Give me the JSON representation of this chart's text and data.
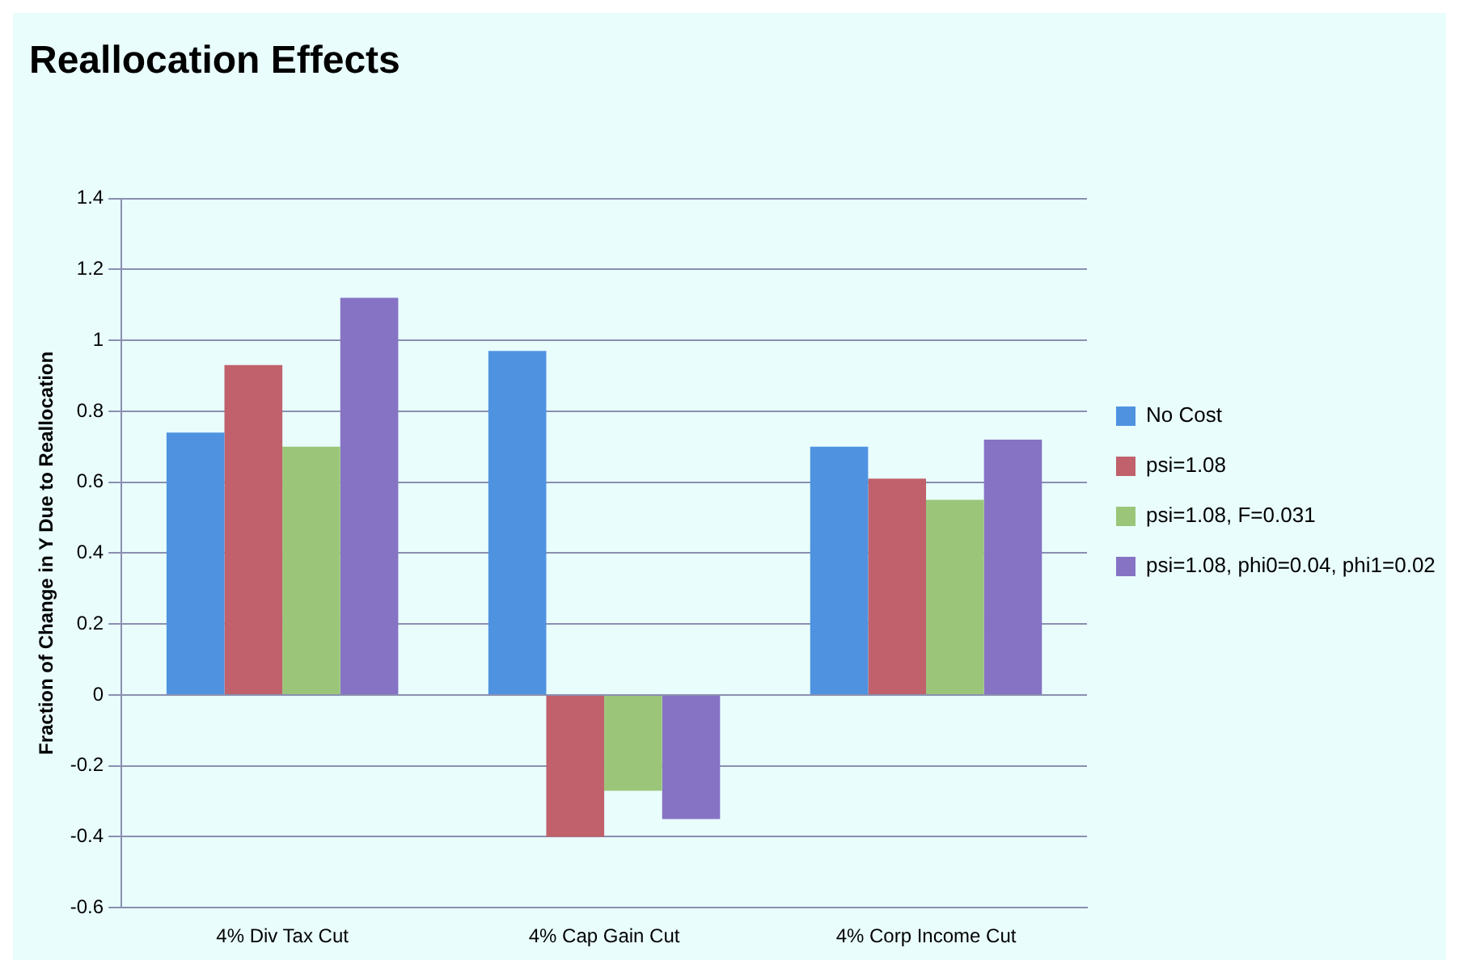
{
  "chart_data": {
    "type": "bar",
    "title": "Reallocation Effects",
    "ylabel": "Fraction of Change in Y Due to Reallocation",
    "categories": [
      "4% Div Tax Cut",
      "4% Cap Gain Cut",
      "4% Corp Income Cut"
    ],
    "series": [
      {
        "name": "No Cost",
        "color": "#4f93e0",
        "values": [
          0.74,
          0.97,
          0.7
        ]
      },
      {
        "name": "psi=1.08",
        "color": "#c0616b",
        "values": [
          0.93,
          -0.4,
          0.61
        ]
      },
      {
        "name": "psi=1.08, F=0.031",
        "color": "#9bc67a",
        "values": [
          0.7,
          -0.27,
          0.55
        ]
      },
      {
        "name": "psi=1.08, phi0=0.04, phi1=0.02",
        "color": "#8673c4",
        "values": [
          1.12,
          -0.35,
          0.72
        ]
      }
    ],
    "ylim": [
      -0.6,
      1.4
    ],
    "yticks": [
      -0.6,
      -0.4,
      -0.2,
      0,
      0.2,
      0.4,
      0.6,
      0.8,
      1,
      1.2,
      1.4
    ],
    "grid": "y",
    "legend": "right"
  }
}
